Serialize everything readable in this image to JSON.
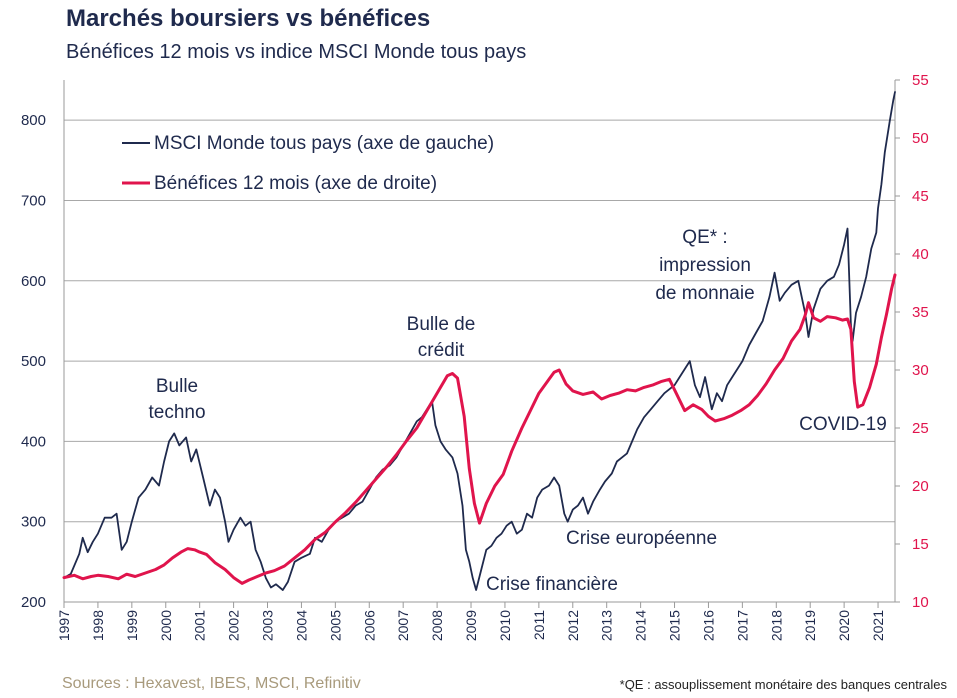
{
  "title": "Marchés boursiers vs bénéfices",
  "subtitle": "Bénéfices 12 mois vs indice MSCI Monde tous pays",
  "sources": "Sources : Hexavest, IBES, MSCI, Refinitiv",
  "footnote": "*QE : assouplissement monétaire des banques centrales",
  "colors": {
    "msci": "#1f2a4d",
    "earnings": "#e0144c",
    "grid": "#a8a8a8"
  },
  "chart_data": {
    "type": "line",
    "title": "Marchés boursiers vs bénéfices",
    "subtitle": "Bénéfices 12 mois vs indice MSCI Monde tous pays",
    "x_range": [
      1997.0,
      2021.5
    ],
    "x_ticks": [
      "1997",
      "1998",
      "1999",
      "2000",
      "2001",
      "2002",
      "2003",
      "2004",
      "2005",
      "2006",
      "2007",
      "2008",
      "2009",
      "2010",
      "2011",
      "2012",
      "2013",
      "2014",
      "2015",
      "2016",
      "2017",
      "2018",
      "2019",
      "2020",
      "2021"
    ],
    "y_left": {
      "range": [
        200,
        850
      ],
      "ticks": [
        200,
        300,
        400,
        500,
        600,
        700,
        800
      ]
    },
    "y_right": {
      "range": [
        10,
        55
      ],
      "ticks": [
        10,
        15,
        20,
        25,
        30,
        35,
        40,
        45,
        50,
        55
      ]
    },
    "gridlines_left": [
      300,
      400,
      500,
      600,
      700,
      800
    ],
    "legend": {
      "position": "top-left"
    },
    "series": [
      {
        "name": "MSCI Monde tous pays (axe de gauche)",
        "axis": "left",
        "points": [
          [
            1997.0,
            230
          ],
          [
            1997.2,
            235
          ],
          [
            1997.45,
            260
          ],
          [
            1997.55,
            280
          ],
          [
            1997.7,
            262
          ],
          [
            1997.85,
            275
          ],
          [
            1998.0,
            285
          ],
          [
            1998.2,
            305
          ],
          [
            1998.4,
            305
          ],
          [
            1998.55,
            310
          ],
          [
            1998.7,
            265
          ],
          [
            1998.85,
            275
          ],
          [
            1999.0,
            300
          ],
          [
            1999.2,
            330
          ],
          [
            1999.4,
            340
          ],
          [
            1999.6,
            355
          ],
          [
            1999.8,
            345
          ],
          [
            1999.95,
            375
          ],
          [
            2000.1,
            400
          ],
          [
            2000.25,
            410
          ],
          [
            2000.4,
            395
          ],
          [
            2000.6,
            405
          ],
          [
            2000.75,
            375
          ],
          [
            2000.9,
            390
          ],
          [
            2001.1,
            355
          ],
          [
            2001.3,
            320
          ],
          [
            2001.45,
            340
          ],
          [
            2001.6,
            330
          ],
          [
            2001.75,
            300
          ],
          [
            2001.85,
            275
          ],
          [
            2002.0,
            290
          ],
          [
            2002.2,
            305
          ],
          [
            2002.35,
            295
          ],
          [
            2002.5,
            300
          ],
          [
            2002.65,
            265
          ],
          [
            2002.8,
            250
          ],
          [
            2002.95,
            230
          ],
          [
            2003.1,
            218
          ],
          [
            2003.25,
            222
          ],
          [
            2003.45,
            215
          ],
          [
            2003.6,
            225
          ],
          [
            2003.8,
            250
          ],
          [
            2004.0,
            255
          ],
          [
            2004.25,
            260
          ],
          [
            2004.4,
            280
          ],
          [
            2004.6,
            275
          ],
          [
            2004.8,
            290
          ],
          [
            2005.0,
            300
          ],
          [
            2005.2,
            305
          ],
          [
            2005.4,
            310
          ],
          [
            2005.6,
            320
          ],
          [
            2005.8,
            325
          ],
          [
            2006.0,
            340
          ],
          [
            2006.2,
            355
          ],
          [
            2006.4,
            365
          ],
          [
            2006.6,
            370
          ],
          [
            2006.8,
            380
          ],
          [
            2007.0,
            395
          ],
          [
            2007.2,
            410
          ],
          [
            2007.4,
            425
          ],
          [
            2007.55,
            430
          ],
          [
            2007.7,
            440
          ],
          [
            2007.85,
            450
          ],
          [
            2007.95,
            420
          ],
          [
            2008.1,
            400
          ],
          [
            2008.25,
            390
          ],
          [
            2008.45,
            380
          ],
          [
            2008.6,
            360
          ],
          [
            2008.75,
            320
          ],
          [
            2008.85,
            265
          ],
          [
            2008.95,
            250
          ],
          [
            2009.05,
            230
          ],
          [
            2009.15,
            215
          ],
          [
            2009.3,
            240
          ],
          [
            2009.45,
            265
          ],
          [
            2009.6,
            270
          ],
          [
            2009.75,
            280
          ],
          [
            2009.9,
            285
          ],
          [
            2010.05,
            295
          ],
          [
            2010.2,
            300
          ],
          [
            2010.35,
            285
          ],
          [
            2010.5,
            290
          ],
          [
            2010.65,
            310
          ],
          [
            2010.8,
            305
          ],
          [
            2010.95,
            330
          ],
          [
            2011.1,
            340
          ],
          [
            2011.3,
            345
          ],
          [
            2011.45,
            355
          ],
          [
            2011.6,
            345
          ],
          [
            2011.75,
            310
          ],
          [
            2011.85,
            300
          ],
          [
            2012.0,
            315
          ],
          [
            2012.15,
            320
          ],
          [
            2012.3,
            330
          ],
          [
            2012.45,
            310
          ],
          [
            2012.6,
            325
          ],
          [
            2012.8,
            340
          ],
          [
            2012.95,
            350
          ],
          [
            2013.15,
            360
          ],
          [
            2013.3,
            375
          ],
          [
            2013.45,
            380
          ],
          [
            2013.6,
            385
          ],
          [
            2013.75,
            400
          ],
          [
            2013.9,
            415
          ],
          [
            2014.1,
            430
          ],
          [
            2014.3,
            440
          ],
          [
            2014.5,
            450
          ],
          [
            2014.7,
            460
          ],
          [
            2014.85,
            465
          ],
          [
            2015.0,
            470
          ],
          [
            2015.15,
            480
          ],
          [
            2015.3,
            490
          ],
          [
            2015.45,
            500
          ],
          [
            2015.6,
            470
          ],
          [
            2015.75,
            455
          ],
          [
            2015.9,
            480
          ],
          [
            2016.0,
            460
          ],
          [
            2016.1,
            440
          ],
          [
            2016.25,
            460
          ],
          [
            2016.4,
            450
          ],
          [
            2016.55,
            470
          ],
          [
            2016.7,
            480
          ],
          [
            2016.85,
            490
          ],
          [
            2017.0,
            500
          ],
          [
            2017.2,
            520
          ],
          [
            2017.4,
            535
          ],
          [
            2017.6,
            550
          ],
          [
            2017.8,
            580
          ],
          [
            2017.95,
            610
          ],
          [
            2018.1,
            575
          ],
          [
            2018.25,
            585
          ],
          [
            2018.45,
            595
          ],
          [
            2018.65,
            600
          ],
          [
            2018.85,
            560
          ],
          [
            2018.95,
            530
          ],
          [
            2019.1,
            565
          ],
          [
            2019.3,
            590
          ],
          [
            2019.5,
            600
          ],
          [
            2019.7,
            605
          ],
          [
            2019.85,
            620
          ],
          [
            2020.0,
            645
          ],
          [
            2020.1,
            665
          ],
          [
            2020.2,
            545
          ],
          [
            2020.25,
            525
          ],
          [
            2020.35,
            560
          ],
          [
            2020.5,
            580
          ],
          [
            2020.65,
            605
          ],
          [
            2020.8,
            640
          ],
          [
            2020.95,
            660
          ],
          [
            2021.0,
            690
          ],
          [
            2021.1,
            720
          ],
          [
            2021.2,
            760
          ],
          [
            2021.35,
            800
          ],
          [
            2021.45,
            825
          ],
          [
            2021.5,
            835
          ]
        ]
      },
      {
        "name": "Bénéfices 12 mois (axe de droite)",
        "axis": "right",
        "points": [
          [
            1997.0,
            12.1
          ],
          [
            1997.3,
            12.3
          ],
          [
            1997.55,
            12.0
          ],
          [
            1997.8,
            12.2
          ],
          [
            1998.0,
            12.3
          ],
          [
            1998.3,
            12.2
          ],
          [
            1998.6,
            12.0
          ],
          [
            1998.85,
            12.4
          ],
          [
            1999.1,
            12.2
          ],
          [
            1999.4,
            12.5
          ],
          [
            1999.7,
            12.8
          ],
          [
            1999.95,
            13.2
          ],
          [
            2000.2,
            13.8
          ],
          [
            2000.45,
            14.3
          ],
          [
            2000.65,
            14.6
          ],
          [
            2000.85,
            14.5
          ],
          [
            2001.0,
            14.3
          ],
          [
            2001.2,
            14.1
          ],
          [
            2001.45,
            13.4
          ],
          [
            2001.75,
            12.8
          ],
          [
            2002.0,
            12.1
          ],
          [
            2002.25,
            11.6
          ],
          [
            2002.45,
            11.9
          ],
          [
            2002.7,
            12.2
          ],
          [
            2002.95,
            12.5
          ],
          [
            2003.2,
            12.7
          ],
          [
            2003.5,
            13.1
          ],
          [
            2003.8,
            13.8
          ],
          [
            2004.1,
            14.5
          ],
          [
            2004.4,
            15.4
          ],
          [
            2004.7,
            16.0
          ],
          [
            2005.0,
            16.9
          ],
          [
            2005.3,
            17.7
          ],
          [
            2005.6,
            18.6
          ],
          [
            2005.9,
            19.6
          ],
          [
            2006.2,
            20.6
          ],
          [
            2006.5,
            21.6
          ],
          [
            2006.8,
            22.7
          ],
          [
            2007.1,
            23.9
          ],
          [
            2007.4,
            25.0
          ],
          [
            2007.7,
            26.5
          ],
          [
            2007.9,
            27.5
          ],
          [
            2008.1,
            28.5
          ],
          [
            2008.3,
            29.5
          ],
          [
            2008.45,
            29.7
          ],
          [
            2008.6,
            29.3
          ],
          [
            2008.8,
            26.0
          ],
          [
            2008.95,
            21.5
          ],
          [
            2009.1,
            18.5
          ],
          [
            2009.25,
            16.8
          ],
          [
            2009.45,
            18.5
          ],
          [
            2009.7,
            20.0
          ],
          [
            2009.95,
            21.0
          ],
          [
            2010.2,
            23.0
          ],
          [
            2010.5,
            25.0
          ],
          [
            2010.75,
            26.5
          ],
          [
            2011.0,
            28.0
          ],
          [
            2011.3,
            29.2
          ],
          [
            2011.45,
            29.8
          ],
          [
            2011.6,
            30.0
          ],
          [
            2011.8,
            28.8
          ],
          [
            2012.0,
            28.2
          ],
          [
            2012.3,
            27.9
          ],
          [
            2012.6,
            28.1
          ],
          [
            2012.85,
            27.5
          ],
          [
            2013.1,
            27.8
          ],
          [
            2013.35,
            28.0
          ],
          [
            2013.6,
            28.3
          ],
          [
            2013.85,
            28.2
          ],
          [
            2014.1,
            28.5
          ],
          [
            2014.35,
            28.7
          ],
          [
            2014.6,
            29.0
          ],
          [
            2014.85,
            29.2
          ],
          [
            2015.05,
            28.0
          ],
          [
            2015.3,
            26.5
          ],
          [
            2015.55,
            27.0
          ],
          [
            2015.8,
            26.6
          ],
          [
            2016.0,
            26.0
          ],
          [
            2016.2,
            25.6
          ],
          [
            2016.45,
            25.8
          ],
          [
            2016.7,
            26.1
          ],
          [
            2016.95,
            26.5
          ],
          [
            2017.2,
            27.0
          ],
          [
            2017.45,
            27.8
          ],
          [
            2017.7,
            28.8
          ],
          [
            2017.95,
            30.0
          ],
          [
            2018.2,
            31.0
          ],
          [
            2018.45,
            32.5
          ],
          [
            2018.7,
            33.5
          ],
          [
            2018.85,
            34.7
          ],
          [
            2018.95,
            35.8
          ],
          [
            2019.1,
            34.5
          ],
          [
            2019.3,
            34.2
          ],
          [
            2019.5,
            34.6
          ],
          [
            2019.75,
            34.5
          ],
          [
            2019.95,
            34.3
          ],
          [
            2020.1,
            34.4
          ],
          [
            2020.2,
            33.5
          ],
          [
            2020.3,
            29.0
          ],
          [
            2020.4,
            26.8
          ],
          [
            2020.55,
            27.0
          ],
          [
            2020.75,
            28.5
          ],
          [
            2020.95,
            30.5
          ],
          [
            2021.1,
            32.8
          ],
          [
            2021.25,
            34.8
          ],
          [
            2021.4,
            37.0
          ],
          [
            2021.5,
            38.2
          ]
        ]
      }
    ],
    "annotations": [
      {
        "id": "bulle_techno",
        "lines": [
          "Bulle",
          "techno"
        ]
      },
      {
        "id": "bulle_credit",
        "lines": [
          "Bulle de",
          "crédit"
        ]
      },
      {
        "id": "qe",
        "lines": [
          "QE* :",
          "impression",
          "de monnaie"
        ]
      },
      {
        "id": "covid",
        "lines": [
          "COVID-19"
        ]
      },
      {
        "id": "crise_financiere",
        "lines": [
          "Crise financière"
        ]
      },
      {
        "id": "crise_europeenne",
        "lines": [
          "Crise européenne"
        ]
      }
    ]
  }
}
